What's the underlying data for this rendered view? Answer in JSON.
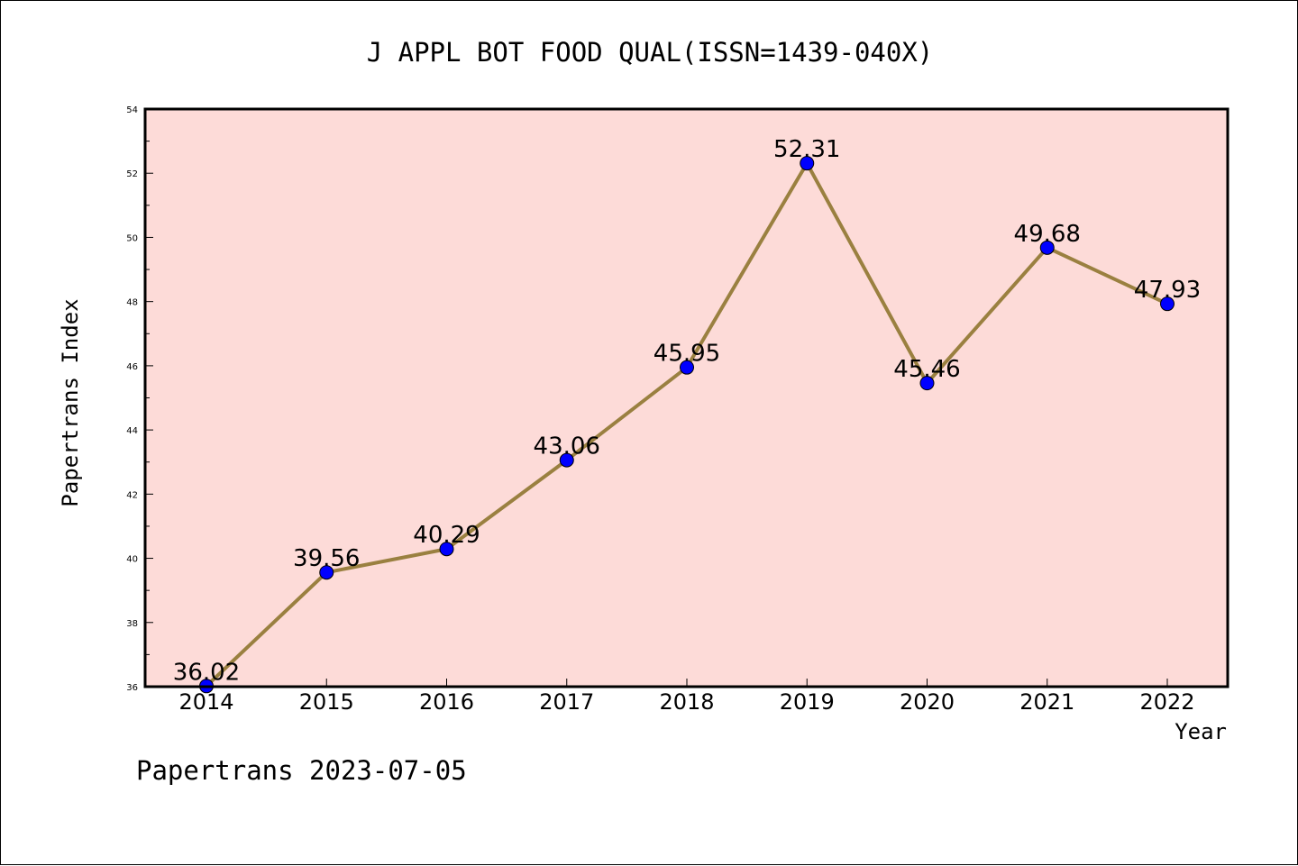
{
  "chart_data": {
    "type": "line",
    "title": "J APPL BOT FOOD QUAL(ISSN=1439-040X)",
    "xlabel": "Year",
    "ylabel": "Papertrans Index",
    "categories": [
      "2014",
      "2015",
      "2016",
      "2017",
      "2018",
      "2019",
      "2020",
      "2021",
      "2022"
    ],
    "values": [
      36.02,
      39.56,
      40.29,
      43.06,
      45.95,
      52.31,
      45.46,
      49.68,
      47.93
    ],
    "value_labels": [
      "36.02",
      "39.56",
      "40.29",
      "43.06",
      "45.95",
      "52.31",
      "45.46",
      "49.68",
      "47.93"
    ],
    "ylim": [
      36,
      54
    ],
    "yticks": [
      "36",
      "38",
      "40",
      "42",
      "44",
      "46",
      "48",
      "50",
      "52",
      "54"
    ],
    "grid": false,
    "colors": {
      "plot_background": "#fddbd8",
      "line": "#9a8040",
      "marker": "#0000ff",
      "axes": "#000000"
    }
  },
  "footer": "Papertrans 2023-07-05"
}
